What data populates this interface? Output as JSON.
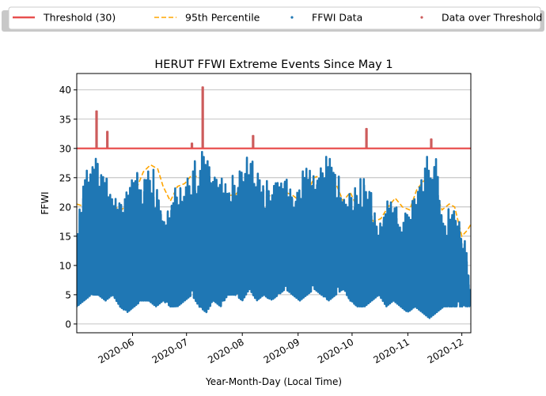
{
  "chart_data": {
    "type": "scatter",
    "title": "HERUT FFWI Extreme Events Since May 1",
    "xlabel": "Year-Month-Day (Local Time)",
    "ylabel": "FFWI",
    "xlim": [
      "2020-05-01",
      "2020-12-06"
    ],
    "ylim": [
      -1.5,
      42.8
    ],
    "x_ticks": [
      "2020-06",
      "2020-07",
      "2020-08",
      "2020-09",
      "2020-10",
      "2020-11",
      "2020-12"
    ],
    "y_ticks": [
      0,
      5,
      10,
      15,
      20,
      25,
      30,
      35,
      40
    ],
    "grid": "horizontal",
    "legend_position": "top-center",
    "colors": {
      "threshold": "#e8504f",
      "percentile": "#ffa500",
      "data": "#1f77b4",
      "over": "#cd5c5c"
    },
    "legend": [
      {
        "label": "Threshold (30)",
        "kind": "line",
        "color": "#e8504f"
      },
      {
        "label": "95th Percentile",
        "kind": "dashed",
        "color": "#ffa500"
      },
      {
        "label": "FFWI Data",
        "kind": "dot",
        "color": "#1f77b4"
      },
      {
        "label": "Data over Threshold",
        "kind": "dot",
        "color": "#cd5c5c"
      }
    ],
    "threshold": 30,
    "percentile_95": {
      "x": [
        "2020-05-01",
        "2020-05-04",
        "2020-05-07",
        "2020-05-10",
        "2020-05-14",
        "2020-05-18",
        "2020-05-22",
        "2020-05-26",
        "2020-05-30",
        "2020-06-03",
        "2020-06-07",
        "2020-06-11",
        "2020-06-15",
        "2020-06-18",
        "2020-06-22",
        "2020-06-26",
        "2020-06-30",
        "2020-07-04",
        "2020-07-08",
        "2020-07-12",
        "2020-07-16",
        "2020-07-20",
        "2020-07-24",
        "2020-07-28",
        "2020-08-01",
        "2020-08-05",
        "2020-08-09",
        "2020-08-13",
        "2020-08-17",
        "2020-08-21",
        "2020-08-25",
        "2020-08-29",
        "2020-09-02",
        "2020-09-06",
        "2020-09-10",
        "2020-09-14",
        "2020-09-18",
        "2020-09-22",
        "2020-09-26",
        "2020-09-30",
        "2020-10-03",
        "2020-10-06",
        "2020-10-09",
        "2020-10-13",
        "2020-10-17",
        "2020-10-21",
        "2020-10-25",
        "2020-10-29",
        "2020-11-02",
        "2020-11-06",
        "2020-11-10",
        "2020-11-13",
        "2020-11-17",
        "2020-11-20",
        "2020-11-24",
        "2020-11-27",
        "2020-12-01",
        "2020-12-04",
        "2020-12-06"
      ],
      "y": [
        20.5,
        20.2,
        22.0,
        21.5,
        22.0,
        21.8,
        20.0,
        19.5,
        21.0,
        23.0,
        26.0,
        27.2,
        26.5,
        23.5,
        21.0,
        23.5,
        24.0,
        25.5,
        25.0,
        24.5,
        24.2,
        22.5,
        22.0,
        22.0,
        23.5,
        23.0,
        21.0,
        21.5,
        22.0,
        22.0,
        22.5,
        22.0,
        21.0,
        22.5,
        25.0,
        25.5,
        24.5,
        24.0,
        21.0,
        22.5,
        20.5,
        20.0,
        19.0,
        17.5,
        18.0,
        20.0,
        21.5,
        20.0,
        19.5,
        23.0,
        24.5,
        24.0,
        22.0,
        19.5,
        20.5,
        20.0,
        15.0,
        16.0,
        17.0
      ]
    },
    "ffwi_envelope": {
      "x": [
        "2020-05-01",
        "2020-05-05",
        "2020-05-09",
        "2020-05-13",
        "2020-05-17",
        "2020-05-21",
        "2020-05-25",
        "2020-05-29",
        "2020-06-02",
        "2020-06-06",
        "2020-06-10",
        "2020-06-14",
        "2020-06-18",
        "2020-06-22",
        "2020-06-26",
        "2020-06-30",
        "2020-07-04",
        "2020-07-08",
        "2020-07-12",
        "2020-07-16",
        "2020-07-20",
        "2020-07-24",
        "2020-07-28",
        "2020-08-01",
        "2020-08-05",
        "2020-08-09",
        "2020-08-13",
        "2020-08-17",
        "2020-08-21",
        "2020-08-25",
        "2020-08-29",
        "2020-09-02",
        "2020-09-06",
        "2020-09-10",
        "2020-09-14",
        "2020-09-18",
        "2020-09-22",
        "2020-09-26",
        "2020-09-30",
        "2020-10-04",
        "2020-10-08",
        "2020-10-12",
        "2020-10-16",
        "2020-10-20",
        "2020-10-24",
        "2020-10-28",
        "2020-11-01",
        "2020-11-05",
        "2020-11-09",
        "2020-11-13",
        "2020-11-17",
        "2020-11-21",
        "2020-11-25",
        "2020-11-29",
        "2020-12-03",
        "2020-12-06"
      ],
      "low": [
        3,
        4,
        5,
        5,
        4,
        5,
        3,
        2,
        3,
        4,
        4,
        3,
        4,
        3,
        3,
        4,
        5,
        3,
        2,
        4,
        3,
        5,
        5,
        4,
        6,
        4,
        5,
        4,
        5,
        6,
        5,
        4,
        5,
        6,
        5,
        4,
        5,
        6,
        4,
        3,
        3,
        4,
        5,
        3,
        4,
        3,
        2,
        3,
        2,
        1,
        2,
        3,
        3,
        3,
        3,
        3
      ],
      "high": [
        16,
        25,
        30,
        28,
        26,
        22,
        21,
        24,
        27,
        24,
        27,
        26,
        18,
        23,
        25,
        24,
        27,
        29,
        30,
        27,
        25,
        24,
        26,
        28,
        29,
        26,
        24,
        25,
        24,
        25,
        23,
        26,
        27,
        26,
        27,
        30,
        26,
        24,
        22,
        24,
        26,
        22,
        17,
        21,
        22,
        17,
        20,
        22,
        27,
        30,
        28,
        17,
        21,
        18,
        14,
        5
      ]
    },
    "over_threshold_events": [
      {
        "date": "2020-05-12",
        "peak": 36.5
      },
      {
        "date": "2020-05-18",
        "peak": 33.0
      },
      {
        "date": "2020-07-04",
        "peak": 31.0
      },
      {
        "date": "2020-07-10",
        "peak": 40.6
      },
      {
        "date": "2020-08-07",
        "peak": 32.3
      },
      {
        "date": "2020-10-09",
        "peak": 33.5
      },
      {
        "date": "2020-11-14",
        "peak": 31.7
      }
    ]
  }
}
